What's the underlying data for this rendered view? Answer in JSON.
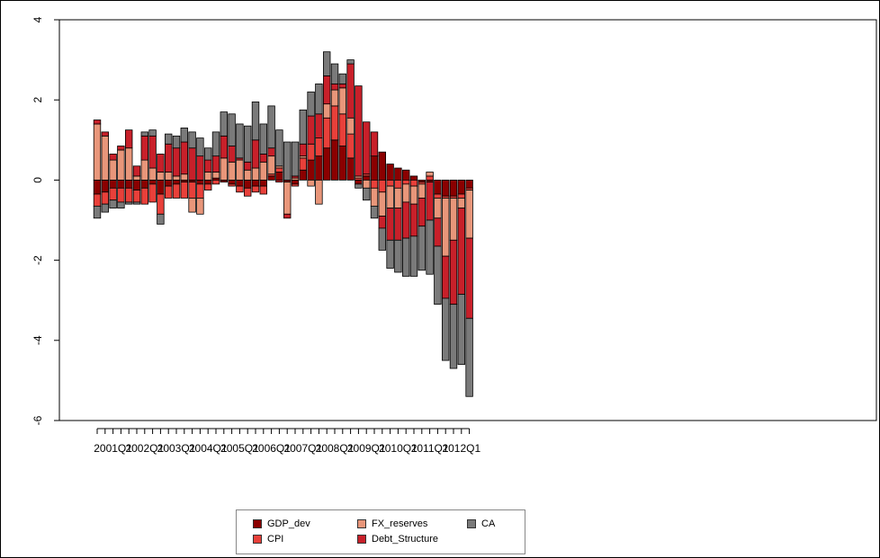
{
  "chart_data": {
    "type": "bar",
    "stacked": true,
    "title": "",
    "xlabel": "",
    "ylabel": "",
    "ylim": [
      -6,
      4
    ],
    "y_ticks": [
      -6,
      -4,
      -2,
      0,
      2,
      4
    ],
    "tick_labels_x": [
      "2001Q1",
      "2002Q1",
      "2003Q1",
      "2004Q1",
      "2005Q1",
      "2006Q1",
      "2007Q1",
      "2008Q1",
      "2009Q1",
      "2010Q1",
      "2011Q1",
      "2012Q1"
    ],
    "categories": [
      "2001Q1",
      "2001Q2",
      "2001Q3",
      "2001Q4",
      "2002Q1",
      "2002Q2",
      "2002Q3",
      "2002Q4",
      "2003Q1",
      "2003Q2",
      "2003Q3",
      "2003Q4",
      "2004Q1",
      "2004Q2",
      "2004Q3",
      "2004Q4",
      "2005Q1",
      "2005Q2",
      "2005Q3",
      "2005Q4",
      "2006Q1",
      "2006Q2",
      "2006Q3",
      "2006Q4",
      "2007Q1",
      "2007Q2",
      "2007Q3",
      "2007Q4",
      "2008Q1",
      "2008Q2",
      "2008Q3",
      "2008Q4",
      "2009Q1",
      "2009Q2",
      "2009Q3",
      "2009Q4",
      "2010Q1",
      "2010Q2",
      "2010Q3",
      "2010Q4",
      "2011Q1",
      "2011Q2",
      "2011Q3",
      "2011Q4",
      "2012Q1",
      "2012Q2",
      "2012Q3",
      "2012Q4"
    ],
    "series": [
      {
        "name": "GDP_dev",
        "color": "#8b0000",
        "values": [
          -0.35,
          -0.3,
          -0.2,
          -0.2,
          -0.2,
          -0.25,
          -0.2,
          -0.1,
          -0.35,
          -0.15,
          -0.1,
          -0.05,
          -0.05,
          -0.1,
          -0.1,
          0.05,
          -0.05,
          -0.1,
          -0.15,
          -0.2,
          -0.15,
          -0.15,
          0.1,
          0.2,
          -0.05,
          -0.1,
          0.25,
          0.5,
          0.6,
          0.8,
          1.0,
          0.85,
          0.55,
          -0.1,
          0.1,
          0.6,
          0.7,
          0.4,
          0.3,
          0.25,
          0.1,
          -0.05,
          -0.05,
          -0.35,
          -0.4,
          -0.4,
          -0.35,
          -0.2
        ]
      },
      {
        "name": "CPI",
        "color": "#e8403a",
        "values": [
          -0.3,
          -0.3,
          -0.3,
          -0.35,
          -0.35,
          -0.3,
          -0.4,
          -0.45,
          -0.5,
          -0.3,
          -0.35,
          -0.4,
          -0.4,
          -0.35,
          -0.15,
          -0.1,
          0.0,
          -0.05,
          -0.15,
          -0.2,
          -0.15,
          -0.2,
          0.05,
          0.1,
          0.0,
          -0.05,
          0.3,
          0.4,
          0.45,
          0.75,
          0.85,
          0.8,
          0.6,
          0.05,
          0.05,
          -0.2,
          -0.3,
          -0.15,
          -0.2,
          -0.1,
          -0.15,
          -0.05,
          0.1,
          -0.1,
          -0.05,
          -0.05,
          -0.1,
          -0.05
        ]
      },
      {
        "name": "FX_reserves",
        "color": "#e8967a",
        "values": [
          1.4,
          1.1,
          0.5,
          0.75,
          0.8,
          0.1,
          0.5,
          0.3,
          0.2,
          0.2,
          0.1,
          0.15,
          -0.35,
          -0.4,
          0.2,
          0.15,
          0.55,
          0.45,
          0.5,
          0.25,
          0.3,
          0.45,
          0.45,
          0.05,
          -0.8,
          0.05,
          0.05,
          -0.15,
          -0.6,
          0.35,
          0.4,
          0.65,
          0.4,
          0.05,
          -0.2,
          -0.45,
          -0.6,
          -0.55,
          -0.5,
          -0.45,
          -0.45,
          -0.35,
          0.1,
          -0.5,
          -1.45,
          -1.05,
          -0.25,
          -1.2
        ]
      },
      {
        "name": "Debt_Structure",
        "color": "#c8202a",
        "values": [
          0.1,
          0.1,
          0.15,
          0.1,
          0.45,
          0.25,
          0.6,
          0.8,
          0.45,
          0.7,
          0.7,
          0.8,
          0.8,
          0.6,
          0.3,
          0.4,
          0.55,
          0.4,
          0.05,
          0.2,
          0.7,
          0.2,
          0.2,
          -0.05,
          -0.1,
          0.05,
          0.3,
          0.7,
          0.6,
          0.7,
          0.15,
          0.1,
          1.35,
          2.25,
          1.3,
          0.6,
          -0.3,
          -0.8,
          -0.8,
          -0.9,
          -0.8,
          -0.7,
          -0.95,
          -0.7,
          -1.05,
          -1.6,
          -2.15,
          -2.0
        ]
      },
      {
        "name": "CA",
        "color": "#7a7a7a",
        "values": [
          -0.3,
          -0.2,
          -0.2,
          -0.15,
          -0.05,
          -0.05,
          0.1,
          0.15,
          -0.25,
          0.25,
          0.3,
          0.35,
          0.4,
          0.45,
          0.3,
          0.6,
          0.6,
          0.8,
          0.85,
          0.9,
          0.95,
          0.75,
          1.05,
          0.9,
          0.95,
          0.85,
          0.85,
          0.6,
          0.75,
          0.6,
          0.5,
          0.25,
          0.1,
          -0.1,
          -0.3,
          -0.3,
          -0.55,
          -0.7,
          -0.8,
          -0.95,
          -1.0,
          -1.1,
          -1.35,
          -1.45,
          -1.55,
          -1.6,
          -1.75,
          -1.95
        ]
      }
    ],
    "legend": {
      "placement": "bottom-center",
      "order": [
        "GDP_dev",
        "CPI",
        "Debt_Structure",
        "FX_reserves",
        "CA"
      ]
    },
    "grid": false
  }
}
